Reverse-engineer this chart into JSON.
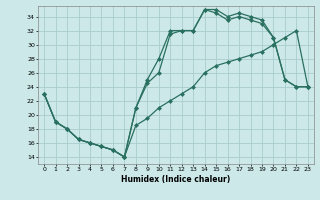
{
  "xlabel": "Humidex (Indice chaleur)",
  "bg_color": "#cce8e8",
  "grid_color": "#aacccc",
  "line_color": "#2a7060",
  "xlim": [
    -0.5,
    23.5
  ],
  "ylim": [
    13.0,
    35.5
  ],
  "yticks": [
    14,
    16,
    18,
    20,
    22,
    24,
    26,
    28,
    30,
    32,
    34
  ],
  "xticks": [
    0,
    1,
    2,
    3,
    4,
    5,
    6,
    7,
    8,
    9,
    10,
    11,
    12,
    13,
    14,
    15,
    16,
    17,
    18,
    19,
    20,
    21,
    22,
    23
  ],
  "line_a_y": [
    23,
    19,
    18,
    16.5,
    16,
    15.5,
    15,
    14,
    21,
    25,
    28,
    32,
    32,
    32,
    35,
    35,
    34,
    34.5,
    34,
    33.5,
    31,
    25,
    24,
    24
  ],
  "line_b_y": [
    23,
    19,
    18,
    16.5,
    16,
    15.5,
    15,
    14,
    21,
    24.5,
    26,
    31.5,
    32,
    32,
    35,
    34.5,
    33.5,
    34,
    33.5,
    33,
    31,
    25,
    24,
    24
  ],
  "line_c_y": [
    23,
    19,
    18,
    16.5,
    16,
    15.5,
    15,
    14,
    18.5,
    19.5,
    21,
    22,
    23,
    24,
    26,
    27,
    27.5,
    28,
    28.5,
    29,
    30,
    31,
    32,
    24
  ]
}
